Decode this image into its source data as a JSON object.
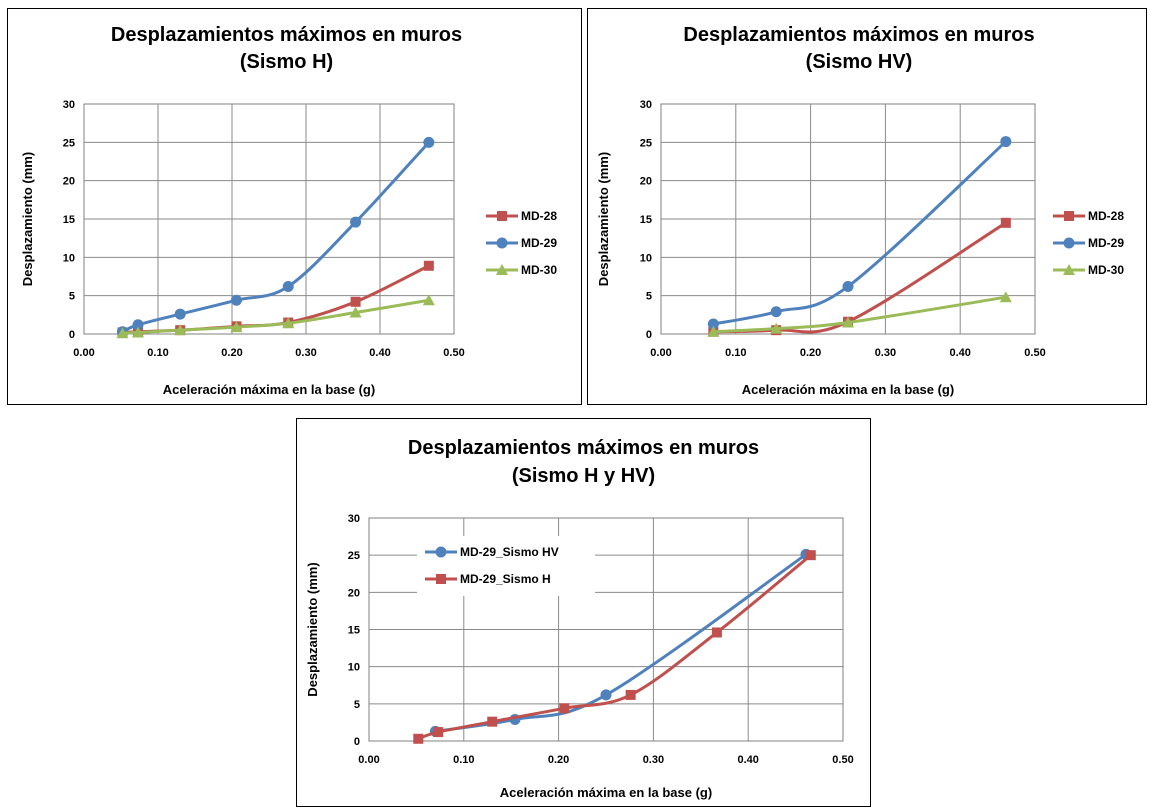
{
  "chart_data": [
    {
      "type": "line",
      "title_lines": [
        "Desplazamientos máximos en muros",
        "(Sismo H)"
      ],
      "xlabel": "Aceleración máxima en la base (g)",
      "ylabel": "Desplazamiento (mm)",
      "xlim": [
        0,
        0.5
      ],
      "ylim": [
        0,
        30
      ],
      "xticks": [
        "0.00",
        "0.10",
        "0.20",
        "0.30",
        "0.40",
        "0.50"
      ],
      "yticks": [
        "0",
        "5",
        "10",
        "15",
        "20",
        "25",
        "30"
      ],
      "grid": true,
      "legend_position": "right",
      "series": [
        {
          "name": "MD-28",
          "color": "#C0504D",
          "marker": "square",
          "x": [
            0.052,
            0.073,
            0.13,
            0.206,
            0.276,
            0.367,
            0.466
          ],
          "y": [
            0.2,
            0.3,
            0.5,
            1.0,
            1.5,
            4.2,
            8.9
          ]
        },
        {
          "name": "MD-29",
          "color": "#4F81BD",
          "marker": "circle",
          "x": [
            0.052,
            0.073,
            0.13,
            0.206,
            0.276,
            0.367,
            0.466
          ],
          "y": [
            0.3,
            1.2,
            2.6,
            4.4,
            6.2,
            14.6,
            25.0
          ]
        },
        {
          "name": "MD-30",
          "color": "#9BBB59",
          "marker": "triangle",
          "x": [
            0.052,
            0.073,
            0.13,
            0.206,
            0.276,
            0.367,
            0.466
          ],
          "y": [
            0.1,
            0.2,
            0.5,
            0.9,
            1.4,
            2.8,
            4.4
          ]
        }
      ]
    },
    {
      "type": "line",
      "title_lines": [
        "Desplazamientos máximos en muros",
        "(Sismo HV)"
      ],
      "xlabel": "Aceleración máxima en la base (g)",
      "ylabel": "Desplazamiento (mm)",
      "xlim": [
        0,
        0.5
      ],
      "ylim": [
        0,
        30
      ],
      "xticks": [
        "0.00",
        "0.10",
        "0.20",
        "0.30",
        "0.40",
        "0.50"
      ],
      "yticks": [
        "0",
        "5",
        "10",
        "15",
        "20",
        "25",
        "30"
      ],
      "grid": true,
      "legend_position": "right",
      "series": [
        {
          "name": "MD-28",
          "color": "#C0504D",
          "marker": "square",
          "x": [
            0.07,
            0.154,
            0.25,
            0.461
          ],
          "y": [
            0.3,
            0.5,
            1.6,
            14.5
          ]
        },
        {
          "name": "MD-29",
          "color": "#4F81BD",
          "marker": "circle",
          "x": [
            0.07,
            0.154,
            0.25,
            0.461
          ],
          "y": [
            1.3,
            2.9,
            6.2,
            25.1
          ]
        },
        {
          "name": "MD-30",
          "color": "#9BBB59",
          "marker": "triangle",
          "x": [
            0.07,
            0.154,
            0.25,
            0.461
          ],
          "y": [
            0.3,
            0.7,
            1.5,
            4.8
          ]
        }
      ]
    },
    {
      "type": "line",
      "title_lines": [
        "Desplazamientos máximos en muros",
        "(Sismo H y HV)"
      ],
      "xlabel": "Aceleración máxima en la base (g)",
      "ylabel": "Desplazamiento (mm)",
      "xlim": [
        0,
        0.5
      ],
      "ylim": [
        0,
        30
      ],
      "xticks": [
        "0.00",
        "0.10",
        "0.20",
        "0.30",
        "0.40",
        "0.50"
      ],
      "yticks": [
        "0",
        "5",
        "10",
        "15",
        "20",
        "25",
        "30"
      ],
      "grid": true,
      "legend_position": "top-left",
      "series": [
        {
          "name": "MD-29_Sismo HV",
          "color": "#4F81BD",
          "marker": "circle",
          "x": [
            0.07,
            0.154,
            0.25,
            0.461
          ],
          "y": [
            1.3,
            2.9,
            6.2,
            25.1
          ]
        },
        {
          "name": "MD-29_Sismo H",
          "color": "#C0504D",
          "marker": "square",
          "x": [
            0.052,
            0.073,
            0.13,
            0.206,
            0.276,
            0.367,
            0.466
          ],
          "y": [
            0.3,
            1.2,
            2.6,
            4.4,
            6.2,
            14.6,
            25.0
          ]
        }
      ]
    }
  ]
}
